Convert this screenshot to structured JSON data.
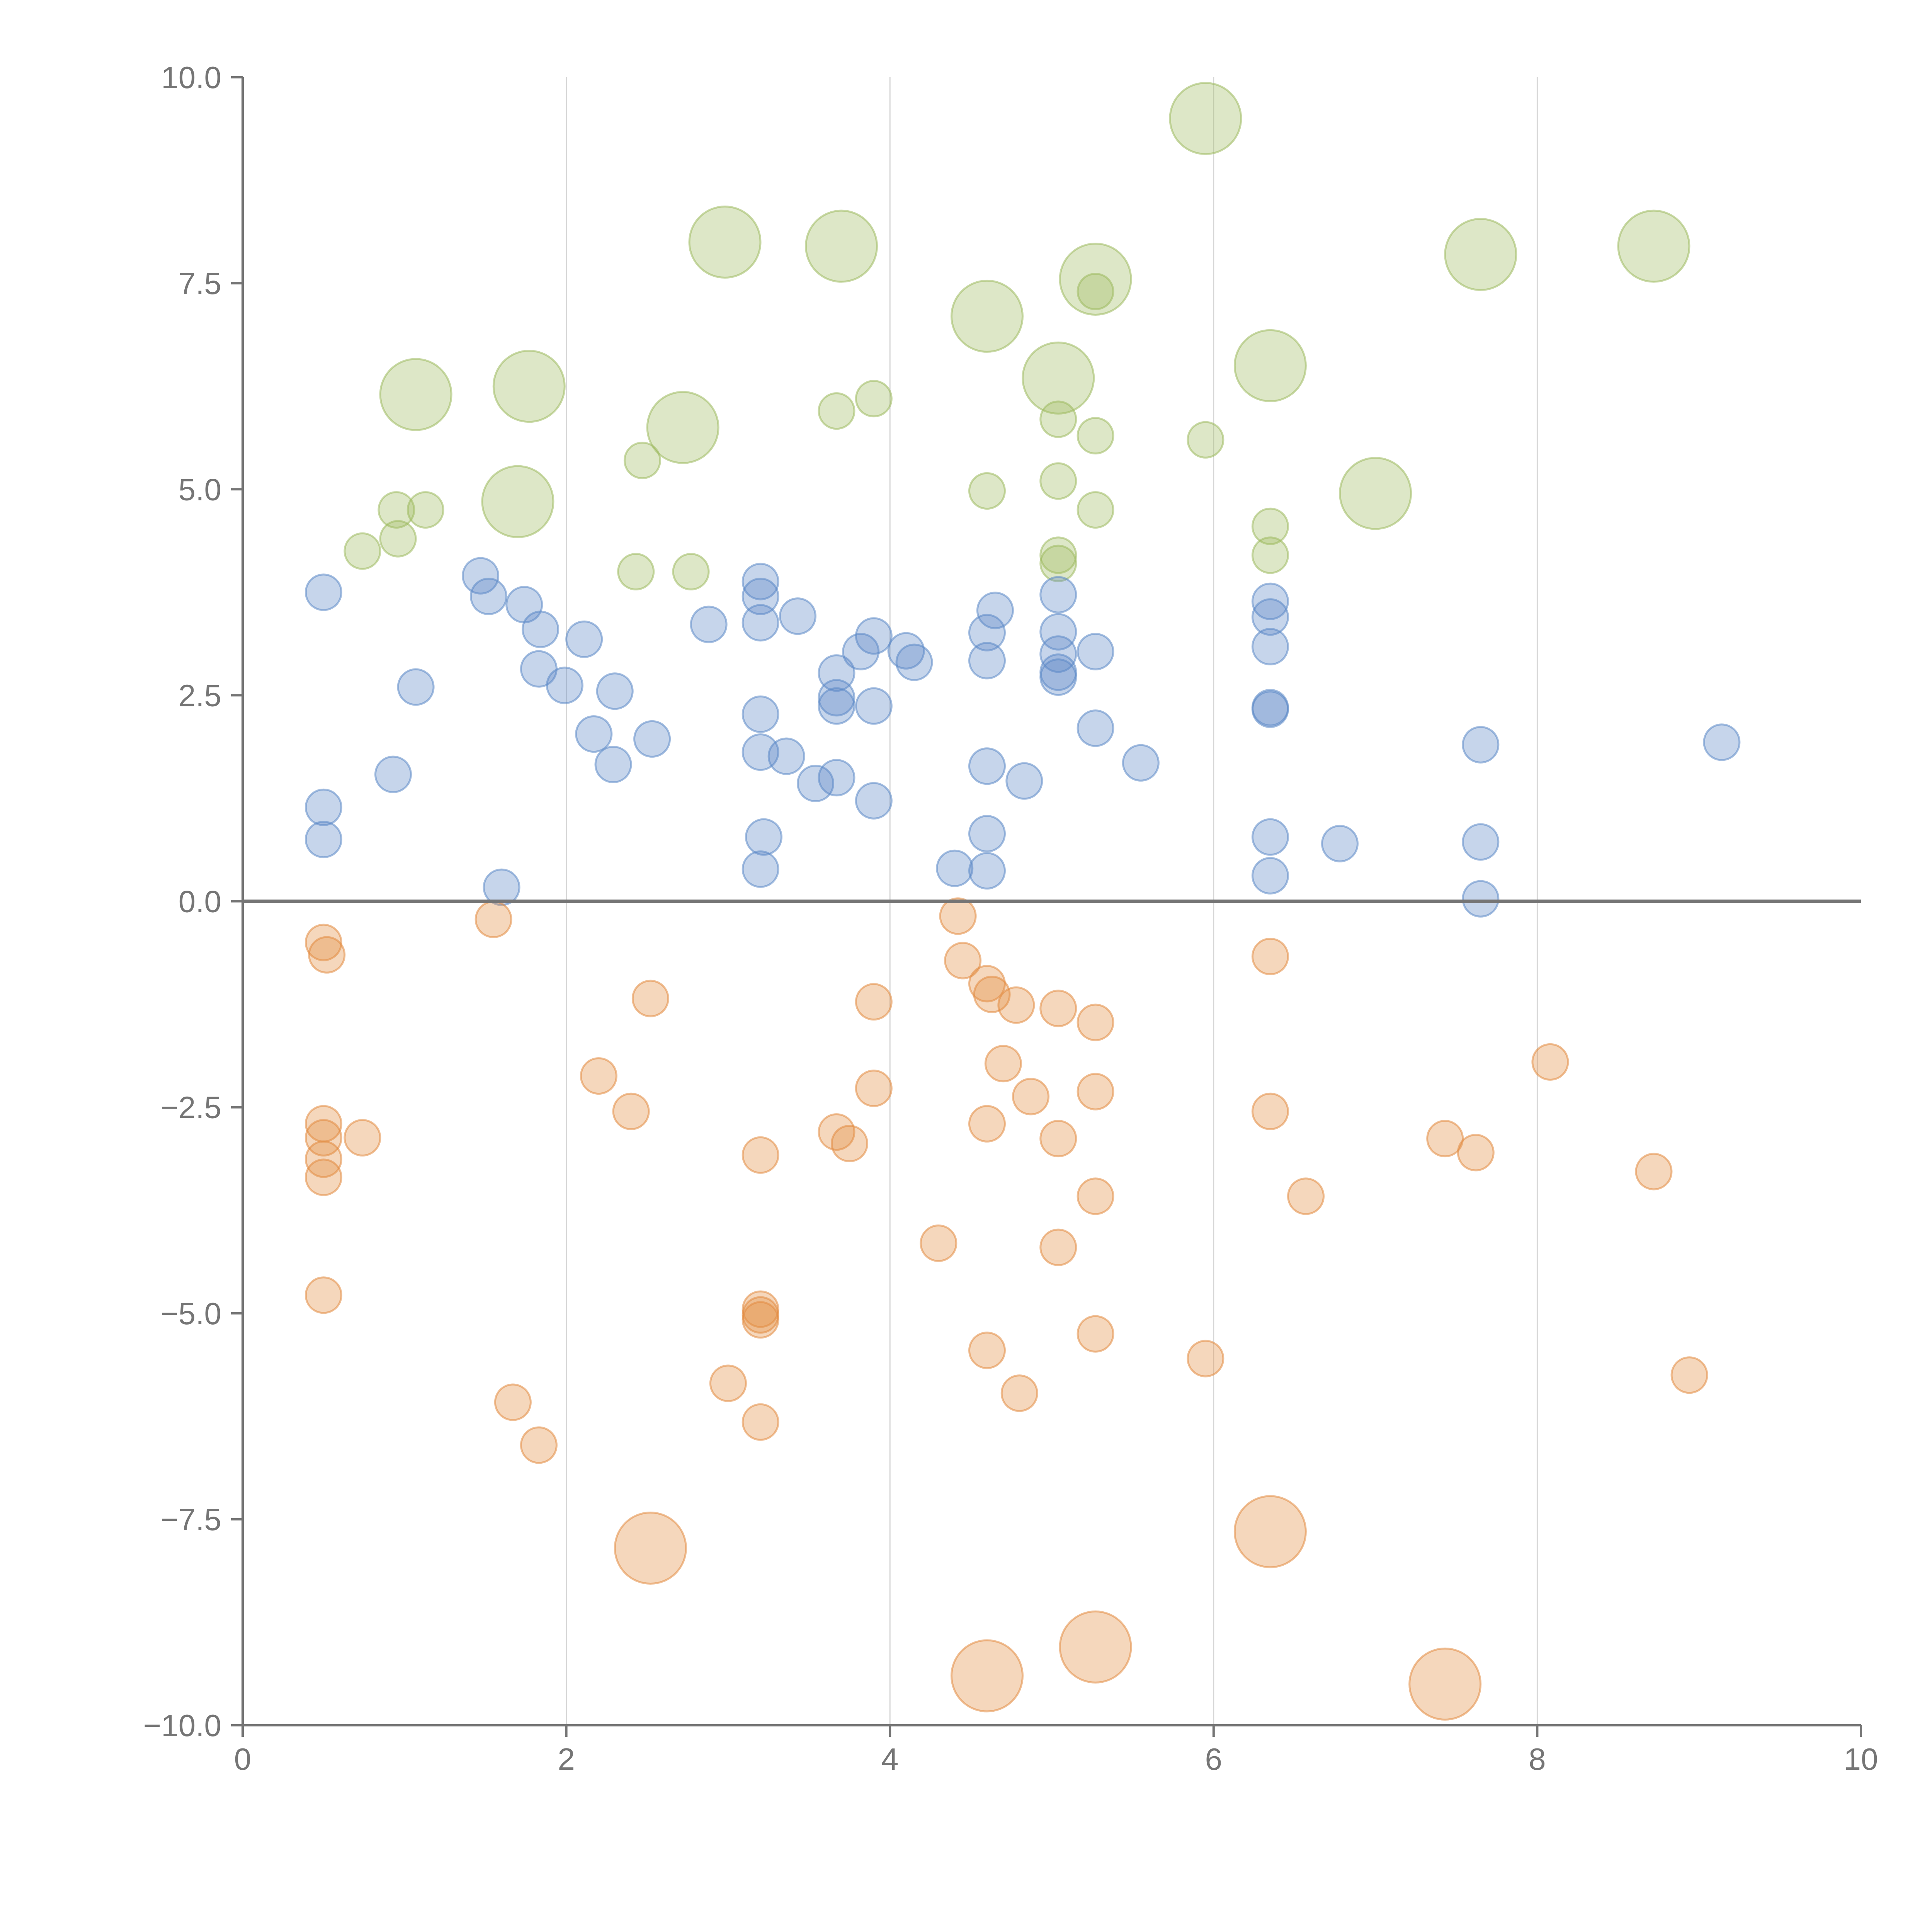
{
  "colors": {
    "group_a": "#9dba5f",
    "group_b": "#5b88c6",
    "group_c": "#e28b3f",
    "axis": "#757575",
    "grid": "#d6d6d6"
  },
  "chart_data": {
    "type": "scatter",
    "title": "",
    "xlabel": "",
    "ylabel": "",
    "xlim": [
      0,
      10
    ],
    "ylim": [
      -10,
      10
    ],
    "grid": "vertical",
    "x_ticks": [
      0,
      2,
      4,
      6,
      8,
      10
    ],
    "x_tick_labels": [
      "0",
      "2",
      "4",
      "6",
      "8",
      "10"
    ],
    "y_ticks": [
      10,
      7.5,
      5,
      2.5,
      0,
      -2.5,
      -5,
      -7.5,
      -10
    ],
    "y_tick_labels": [
      "10.0",
      "7.5",
      "5.0",
      "2.5",
      "0.0",
      "−2.5",
      "−5.0",
      "−7.5",
      "−10.0"
    ],
    "series": [
      {
        "name": "green",
        "color": "#9dba5f",
        "points": [
          {
            "x": 5.95,
            "y": 9.5,
            "s": 3.0
          },
          {
            "x": 2.98,
            "y": 8.0,
            "s": 3.0
          },
          {
            "x": 3.7,
            "y": 7.95,
            "s": 3.0
          },
          {
            "x": 5.27,
            "y": 7.55,
            "s": 3.0
          },
          {
            "x": 7.65,
            "y": 7.85,
            "s": 3.0
          },
          {
            "x": 8.72,
            "y": 7.95,
            "s": 3.0
          },
          {
            "x": 4.6,
            "y": 7.1,
            "s": 3.0
          },
          {
            "x": 1.07,
            "y": 6.15,
            "s": 3.0
          },
          {
            "x": 1.77,
            "y": 6.25,
            "s": 3.0
          },
          {
            "x": 6.35,
            "y": 6.5,
            "s": 3.0
          },
          {
            "x": 5.04,
            "y": 6.35,
            "s": 3.0
          },
          {
            "x": 2.72,
            "y": 5.75,
            "s": 3.0
          },
          {
            "x": 1.7,
            "y": 4.85,
            "s": 3.0
          },
          {
            "x": 7.0,
            "y": 4.95,
            "s": 3.0
          },
          {
            "x": 5.27,
            "y": 7.4,
            "s": 1.0
          },
          {
            "x": 3.67,
            "y": 5.95,
            "s": 1.0
          },
          {
            "x": 3.9,
            "y": 6.1,
            "s": 1.0
          },
          {
            "x": 5.04,
            "y": 5.85,
            "s": 1.0
          },
          {
            "x": 5.27,
            "y": 5.65,
            "s": 1.0
          },
          {
            "x": 5.95,
            "y": 5.6,
            "s": 1.0
          },
          {
            "x": 2.47,
            "y": 5.35,
            "s": 1.0
          },
          {
            "x": 4.6,
            "y": 4.98,
            "s": 1.0
          },
          {
            "x": 5.04,
            "y": 5.1,
            "s": 1.0
          },
          {
            "x": 0.95,
            "y": 4.75,
            "s": 1.0
          },
          {
            "x": 1.13,
            "y": 4.75,
            "s": 1.0
          },
          {
            "x": 5.27,
            "y": 4.75,
            "s": 1.0
          },
          {
            "x": 0.96,
            "y": 4.4,
            "s": 1.0
          },
          {
            "x": 0.74,
            "y": 4.25,
            "s": 1.0
          },
          {
            "x": 6.35,
            "y": 4.55,
            "s": 1.0
          },
          {
            "x": 6.35,
            "y": 4.2,
            "s": 1.0
          },
          {
            "x": 5.04,
            "y": 4.2,
            "s": 1.0
          },
          {
            "x": 5.04,
            "y": 4.1,
            "s": 1.0
          },
          {
            "x": 2.43,
            "y": 4.0,
            "s": 1.0
          },
          {
            "x": 2.77,
            "y": 4.0,
            "s": 1.0
          }
        ]
      },
      {
        "name": "blue",
        "color": "#5b88c6",
        "points": [
          {
            "x": 0.5,
            "y": 3.75,
            "s": 1.0
          },
          {
            "x": 1.47,
            "y": 3.95,
            "s": 1.0
          },
          {
            "x": 1.52,
            "y": 3.7,
            "s": 1.0
          },
          {
            "x": 1.74,
            "y": 3.6,
            "s": 1.0
          },
          {
            "x": 1.84,
            "y": 3.3,
            "s": 1.0
          },
          {
            "x": 2.11,
            "y": 3.18,
            "s": 1.0
          },
          {
            "x": 1.07,
            "y": 2.6,
            "s": 1.0
          },
          {
            "x": 1.83,
            "y": 2.82,
            "s": 1.0
          },
          {
            "x": 1.99,
            "y": 2.62,
            "s": 1.0
          },
          {
            "x": 2.3,
            "y": 2.55,
            "s": 1.0
          },
          {
            "x": 2.17,
            "y": 2.03,
            "s": 1.0
          },
          {
            "x": 2.29,
            "y": 1.66,
            "s": 1.0
          },
          {
            "x": 2.53,
            "y": 1.97,
            "s": 1.0
          },
          {
            "x": 0.93,
            "y": 1.54,
            "s": 1.0
          },
          {
            "x": 0.5,
            "y": 1.14,
            "s": 1.0
          },
          {
            "x": 0.5,
            "y": 0.75,
            "s": 1.0
          },
          {
            "x": 1.6,
            "y": 0.17,
            "s": 1.0
          },
          {
            "x": 2.88,
            "y": 3.36,
            "s": 1.0
          },
          {
            "x": 3.2,
            "y": 3.88,
            "s": 1.0
          },
          {
            "x": 3.2,
            "y": 3.7,
            "s": 1.0
          },
          {
            "x": 3.2,
            "y": 3.38,
            "s": 1.0
          },
          {
            "x": 3.43,
            "y": 3.46,
            "s": 1.0
          },
          {
            "x": 3.2,
            "y": 2.27,
            "s": 1.0
          },
          {
            "x": 3.2,
            "y": 1.81,
            "s": 1.0
          },
          {
            "x": 3.36,
            "y": 1.76,
            "s": 1.0
          },
          {
            "x": 3.54,
            "y": 1.43,
            "s": 1.0
          },
          {
            "x": 3.67,
            "y": 1.5,
            "s": 1.0
          },
          {
            "x": 3.22,
            "y": 0.78,
            "s": 1.0
          },
          {
            "x": 3.2,
            "y": 0.39,
            "s": 1.0
          },
          {
            "x": 3.67,
            "y": 2.77,
            "s": 1.0
          },
          {
            "x": 3.67,
            "y": 2.47,
            "s": 1.0
          },
          {
            "x": 3.67,
            "y": 2.37,
            "s": 1.0
          },
          {
            "x": 3.9,
            "y": 2.37,
            "s": 1.0
          },
          {
            "x": 3.9,
            "y": 1.22,
            "s": 1.0
          },
          {
            "x": 3.82,
            "y": 3.03,
            "s": 1.0
          },
          {
            "x": 3.9,
            "y": 3.22,
            "s": 1.0
          },
          {
            "x": 4.1,
            "y": 3.04,
            "s": 1.0
          },
          {
            "x": 4.15,
            "y": 2.9,
            "s": 1.0
          },
          {
            "x": 4.6,
            "y": 3.26,
            "s": 1.0
          },
          {
            "x": 4.65,
            "y": 3.53,
            "s": 1.0
          },
          {
            "x": 4.6,
            "y": 2.92,
            "s": 1.0
          },
          {
            "x": 4.6,
            "y": 1.64,
            "s": 1.0
          },
          {
            "x": 4.83,
            "y": 1.46,
            "s": 1.0
          },
          {
            "x": 4.6,
            "y": 0.82,
            "s": 1.0
          },
          {
            "x": 4.4,
            "y": 0.4,
            "s": 1.0
          },
          {
            "x": 4.6,
            "y": 0.37,
            "s": 1.0
          },
          {
            "x": 5.04,
            "y": 3.72,
            "s": 1.0
          },
          {
            "x": 5.04,
            "y": 3.27,
            "s": 1.0
          },
          {
            "x": 5.04,
            "y": 3.0,
            "s": 1.0
          },
          {
            "x": 5.04,
            "y": 2.78,
            "s": 1.0
          },
          {
            "x": 5.04,
            "y": 2.72,
            "s": 1.0
          },
          {
            "x": 5.27,
            "y": 3.03,
            "s": 1.0
          },
          {
            "x": 5.27,
            "y": 2.1,
            "s": 1.0
          },
          {
            "x": 5.55,
            "y": 1.68,
            "s": 1.0
          },
          {
            "x": 6.35,
            "y": 3.64,
            "s": 1.0
          },
          {
            "x": 6.35,
            "y": 3.45,
            "s": 1.0
          },
          {
            "x": 6.35,
            "y": 3.09,
            "s": 1.0
          },
          {
            "x": 6.35,
            "y": 2.35,
            "s": 1.0
          },
          {
            "x": 6.35,
            "y": 2.33,
            "s": 1.0
          },
          {
            "x": 6.35,
            "y": 0.78,
            "s": 1.0
          },
          {
            "x": 6.35,
            "y": 0.31,
            "s": 1.0
          },
          {
            "x": 6.78,
            "y": 0.7,
            "s": 1.0
          },
          {
            "x": 7.65,
            "y": 1.9,
            "s": 1.0
          },
          {
            "x": 7.65,
            "y": 0.72,
            "s": 1.0
          },
          {
            "x": 7.65,
            "y": 0.03,
            "s": 1.0
          },
          {
            "x": 9.14,
            "y": 1.93,
            "s": 1.0
          }
        ]
      },
      {
        "name": "orange",
        "color": "#e28b3f",
        "points": [
          {
            "x": 0.5,
            "y": -0.5,
            "s": 1.0
          },
          {
            "x": 0.52,
            "y": -0.65,
            "s": 1.0
          },
          {
            "x": 1.55,
            "y": -0.22,
            "s": 1.0
          },
          {
            "x": 0.5,
            "y": -2.7,
            "s": 1.0
          },
          {
            "x": 0.5,
            "y": -2.87,
            "s": 1.0
          },
          {
            "x": 0.5,
            "y": -3.13,
            "s": 1.0
          },
          {
            "x": 0.5,
            "y": -3.35,
            "s": 1.0
          },
          {
            "x": 0.74,
            "y": -2.87,
            "s": 1.0
          },
          {
            "x": 0.5,
            "y": -4.78,
            "s": 1.0
          },
          {
            "x": 1.67,
            "y": -6.08,
            "s": 1.0
          },
          {
            "x": 1.83,
            "y": -6.6,
            "s": 1.0
          },
          {
            "x": 2.52,
            "y": -1.18,
            "s": 1.0
          },
          {
            "x": 2.2,
            "y": -2.12,
            "s": 1.0
          },
          {
            "x": 2.4,
            "y": -2.55,
            "s": 1.0
          },
          {
            "x": 3.2,
            "y": -3.08,
            "s": 1.0
          },
          {
            "x": 3.2,
            "y": -4.95,
            "s": 1.0
          },
          {
            "x": 3.2,
            "y": -5.02,
            "s": 1.0
          },
          {
            "x": 3.2,
            "y": -5.08,
            "s": 1.0
          },
          {
            "x": 3.0,
            "y": -5.85,
            "s": 1.0
          },
          {
            "x": 3.2,
            "y": -6.32,
            "s": 1.0
          },
          {
            "x": 3.67,
            "y": -2.8,
            "s": 1.0
          },
          {
            "x": 3.75,
            "y": -2.94,
            "s": 1.0
          },
          {
            "x": 3.9,
            "y": -1.22,
            "s": 1.0
          },
          {
            "x": 3.9,
            "y": -2.27,
            "s": 1.0
          },
          {
            "x": 4.3,
            "y": -4.15,
            "s": 1.0
          },
          {
            "x": 4.42,
            "y": -0.18,
            "s": 1.0
          },
          {
            "x": 4.45,
            "y": -0.72,
            "s": 1.0
          },
          {
            "x": 4.6,
            "y": -1.0,
            "s": 1.0
          },
          {
            "x": 4.63,
            "y": -1.13,
            "s": 1.0
          },
          {
            "x": 4.78,
            "y": -1.26,
            "s": 1.0
          },
          {
            "x": 4.7,
            "y": -1.97,
            "s": 1.0
          },
          {
            "x": 4.87,
            "y": -2.37,
            "s": 1.0
          },
          {
            "x": 4.6,
            "y": -2.7,
            "s": 1.0
          },
          {
            "x": 4.6,
            "y": -5.45,
            "s": 1.0
          },
          {
            "x": 4.8,
            "y": -5.97,
            "s": 1.0
          },
          {
            "x": 5.04,
            "y": -1.3,
            "s": 1.0
          },
          {
            "x": 5.04,
            "y": -2.88,
            "s": 1.0
          },
          {
            "x": 5.04,
            "y": -4.2,
            "s": 1.0
          },
          {
            "x": 5.27,
            "y": -1.47,
            "s": 1.0
          },
          {
            "x": 5.27,
            "y": -2.31,
            "s": 1.0
          },
          {
            "x": 5.27,
            "y": -3.58,
            "s": 1.0
          },
          {
            "x": 5.27,
            "y": -5.25,
            "s": 1.0
          },
          {
            "x": 5.95,
            "y": -5.55,
            "s": 1.0
          },
          {
            "x": 6.35,
            "y": -0.67,
            "s": 1.0
          },
          {
            "x": 6.35,
            "y": -2.55,
            "s": 1.0
          },
          {
            "x": 6.57,
            "y": -3.58,
            "s": 1.0
          },
          {
            "x": 7.43,
            "y": -2.88,
            "s": 1.0
          },
          {
            "x": 7.62,
            "y": -3.05,
            "s": 1.0
          },
          {
            "x": 8.08,
            "y": -1.95,
            "s": 1.0
          },
          {
            "x": 8.72,
            "y": -3.28,
            "s": 1.0
          },
          {
            "x": 8.94,
            "y": -5.75,
            "s": 1.0
          },
          {
            "x": 2.52,
            "y": -7.85,
            "s": 3.0
          },
          {
            "x": 6.35,
            "y": -7.65,
            "s": 3.0
          },
          {
            "x": 5.27,
            "y": -9.05,
            "s": 3.0
          },
          {
            "x": 4.6,
            "y": -9.4,
            "s": 3.0
          },
          {
            "x": 7.43,
            "y": -9.5,
            "s": 3.0
          }
        ]
      }
    ]
  }
}
